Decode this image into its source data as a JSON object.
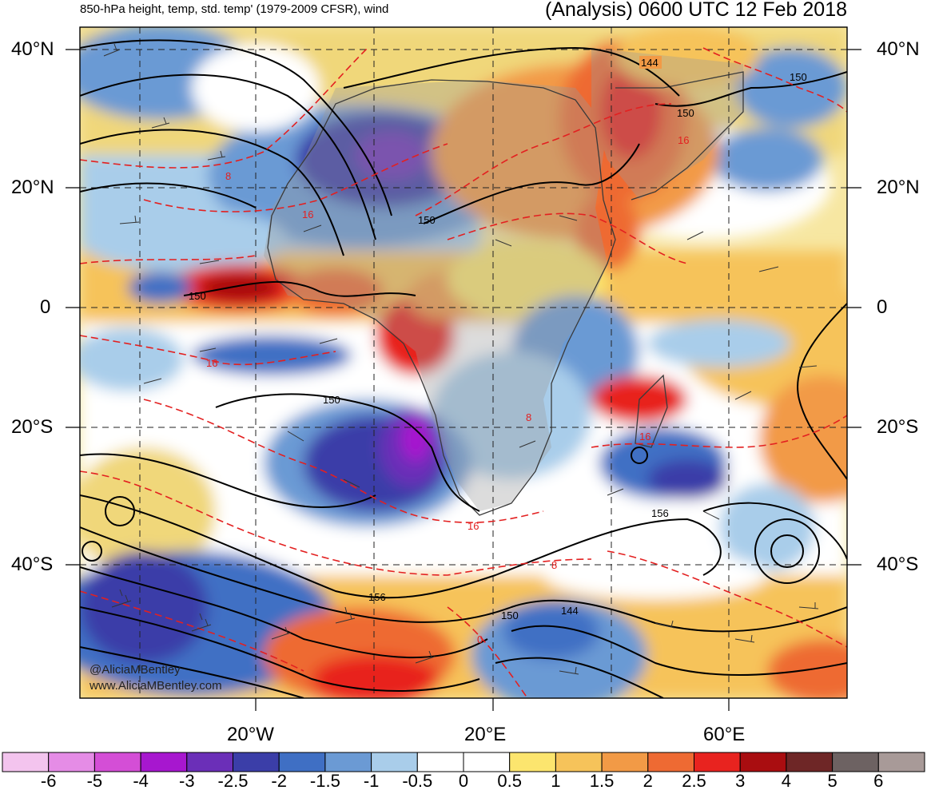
{
  "header": {
    "subtitle": "850-hPa height, temp, std. temp' (1979-2009 CFSR), wind",
    "analysis_time": "(Analysis) 0600 UTC 12 Feb 2018"
  },
  "latitude_labels": [
    "40°N",
    "20°N",
    "0",
    "20°S",
    "40°S"
  ],
  "longitude_labels": [
    "20°W",
    "20°E",
    "60°E"
  ],
  "height_contour_labels": [
    "144",
    "150",
    "150",
    "150",
    "150",
    "150",
    "156",
    "156",
    "150",
    "144"
  ],
  "temperature_contour_labels": [
    "8",
    "16",
    "16",
    "16",
    "16",
    "16",
    "8",
    "0",
    "8"
  ],
  "credits": {
    "handle": "@AliciaMBentley",
    "website": "www.AliciaMBentley.com"
  },
  "colorbar": {
    "ticks": [
      "-6",
      "-5",
      "-4",
      "-3",
      "-2.5",
      "-2",
      "-1.5",
      "-1",
      "-0.5",
      "0",
      "0.5",
      "1",
      "1.5",
      "2",
      "2.5",
      "3",
      "4",
      "5",
      "6"
    ],
    "colors": [
      "#f3c4ee",
      "#e58ce6",
      "#d44ed6",
      "#a717cf",
      "#6b2fb8",
      "#3b3ea8",
      "#3f6fc4",
      "#6b9ad4",
      "#a9cdea",
      "#ffffff",
      "#ffffff",
      "#fce56e",
      "#f6c35a",
      "#f29a46",
      "#ee6a33",
      "#e8231f",
      "#a90d10",
      "#6e2626",
      "#6d6262",
      "#a89a98"
    ]
  },
  "map_colors": {
    "land": "#c8c8c8",
    "ocean_neutral": "#ffffff",
    "height_contour": "#000000",
    "temp_contour": "#e32020"
  }
}
